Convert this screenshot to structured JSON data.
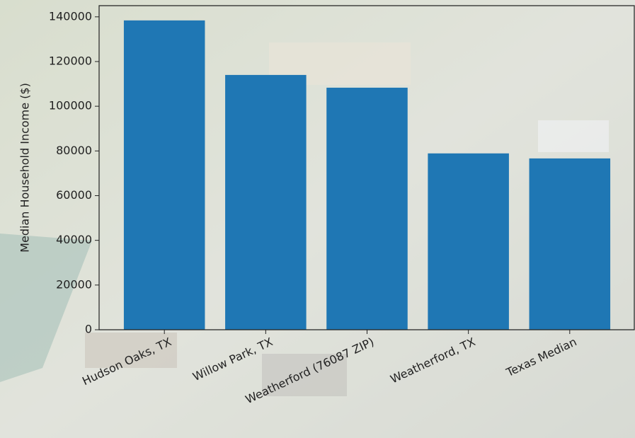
{
  "chart_data": {
    "type": "bar",
    "ylabel": "Median Household Income ($)",
    "categories": [
      "Hudson Oaks, TX",
      "Willow Park, TX",
      "Weatherford (76087 ZIP)",
      "Weatherford, TX",
      "Texas Median"
    ],
    "values": [
      138400,
      114000,
      108300,
      78900,
      76650
    ],
    "color": "#1f77b4",
    "ylim": [
      0,
      145000
    ],
    "yticks": [
      0,
      20000,
      40000,
      60000,
      80000,
      100000,
      120000,
      140000
    ]
  }
}
